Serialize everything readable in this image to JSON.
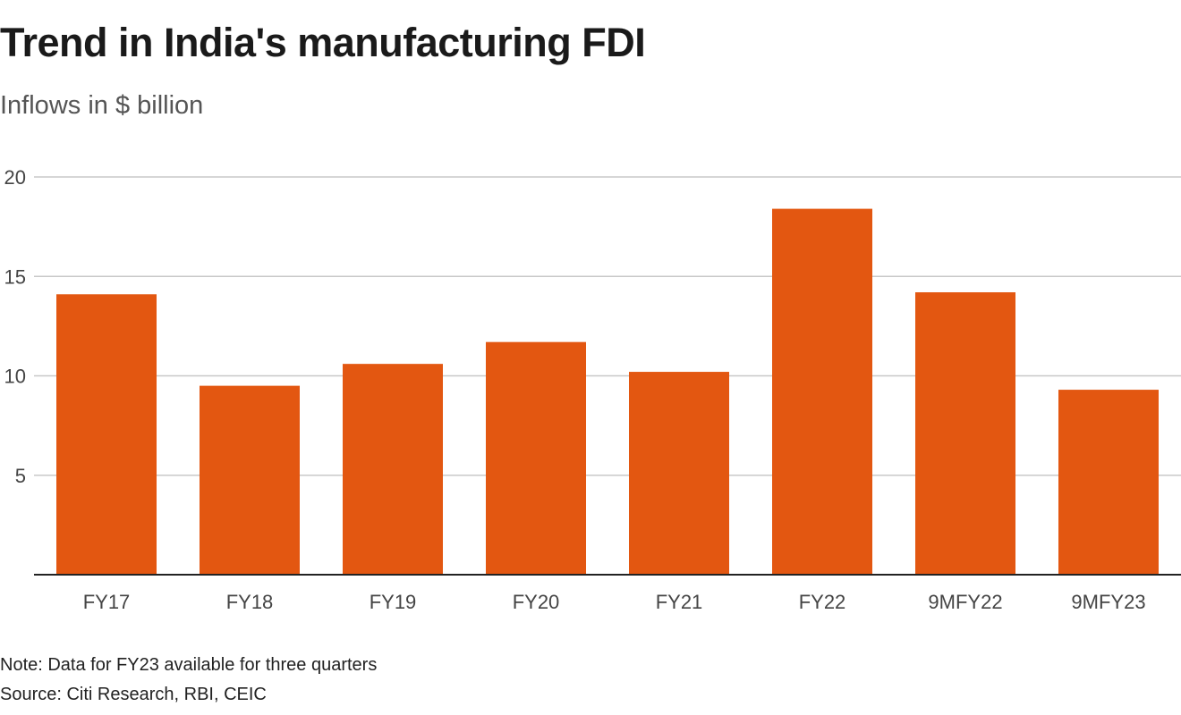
{
  "chart_data": {
    "type": "bar",
    "title": "Trend in India's manufacturing FDI",
    "subtitle": "Inflows in $ billion",
    "categories": [
      "FY17",
      "FY18",
      "FY19",
      "FY20",
      "FY21",
      "FY22",
      "9MFY22",
      "9MFY23"
    ],
    "values": [
      14.1,
      9.5,
      10.6,
      11.7,
      10.2,
      18.4,
      14.2,
      9.3
    ],
    "ylim": [
      0,
      20
    ],
    "yticks": [
      5,
      10,
      15,
      20
    ],
    "grid": true,
    "bar_color": "#e35711",
    "note": "Note: Data for FY23 available for three quarters",
    "source": "Source: Citi Research, RBI, CEIC"
  }
}
